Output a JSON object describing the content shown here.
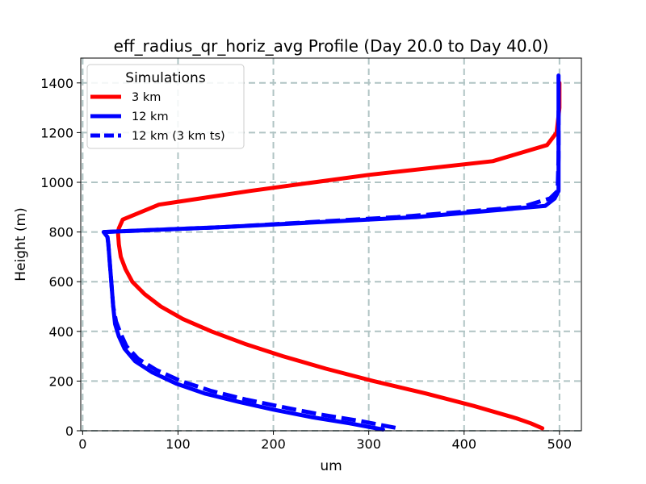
{
  "chart_data": {
    "type": "line",
    "title": "eff_radius_qr_horiz_avg Profile (Day 20.0 to Day 40.0)",
    "xlabel": "um",
    "ylabel": "Height (m)",
    "xlim": [
      -2,
      523
    ],
    "ylim": [
      0,
      1500
    ],
    "xticks": [
      0,
      100,
      200,
      300,
      400,
      500
    ],
    "yticks": [
      0,
      200,
      400,
      600,
      800,
      1000,
      1200,
      1400
    ],
    "grid": true,
    "legend": {
      "title": "Simulations",
      "placement": "top-left"
    },
    "series": [
      {
        "name": "3 km",
        "color": "#ff0000",
        "style": "solid",
        "x": [
          482,
          470,
          455,
          410,
          360,
          305,
          255,
          210,
          170,
          135,
          105,
          82,
          65,
          52,
          45,
          40,
          38,
          37,
          38,
          42,
          80,
          175,
          300,
          430,
          487,
          497,
          500,
          500
        ],
        "y": [
          10,
          30,
          50,
          100,
          150,
          200,
          250,
          300,
          350,
          400,
          450,
          500,
          550,
          600,
          650,
          700,
          750,
          800,
          815,
          850,
          910,
          965,
          1030,
          1085,
          1150,
          1200,
          1300,
          1400
        ]
      },
      {
        "name": "12 km",
        "color": "#0000ff",
        "style": "solid",
        "x": [
          315,
          280,
          240,
          200,
          165,
          128,
          98,
          73,
          55,
          44,
          38,
          34,
          32,
          31,
          30,
          29,
          28,
          27,
          26,
          22,
          150,
          350,
          485,
          495,
          499,
          499,
          499,
          499
        ],
        "y": [
          5,
          30,
          55,
          85,
          115,
          150,
          190,
          235,
          280,
          330,
          380,
          430,
          500,
          550,
          600,
          650,
          700,
          750,
          780,
          800,
          820,
          860,
          905,
          935,
          965,
          1100,
          1300,
          1430
        ]
      },
      {
        "name": "12 km (3 km ts)",
        "color": "#0000ff",
        "style": "dashed",
        "x": [
          328,
          290,
          250,
          210,
          172,
          135,
          103,
          77,
          58,
          46,
          40,
          35,
          32,
          31,
          30,
          29,
          28,
          27,
          26,
          22,
          150,
          330,
          460,
          490,
          498,
          499,
          499
        ],
        "y": [
          12,
          40,
          65,
          95,
          125,
          160,
          200,
          245,
          290,
          340,
          390,
          440,
          500,
          550,
          600,
          650,
          700,
          750,
          780,
          800,
          820,
          860,
          900,
          935,
          965,
          1100,
          1300
        ]
      }
    ]
  }
}
